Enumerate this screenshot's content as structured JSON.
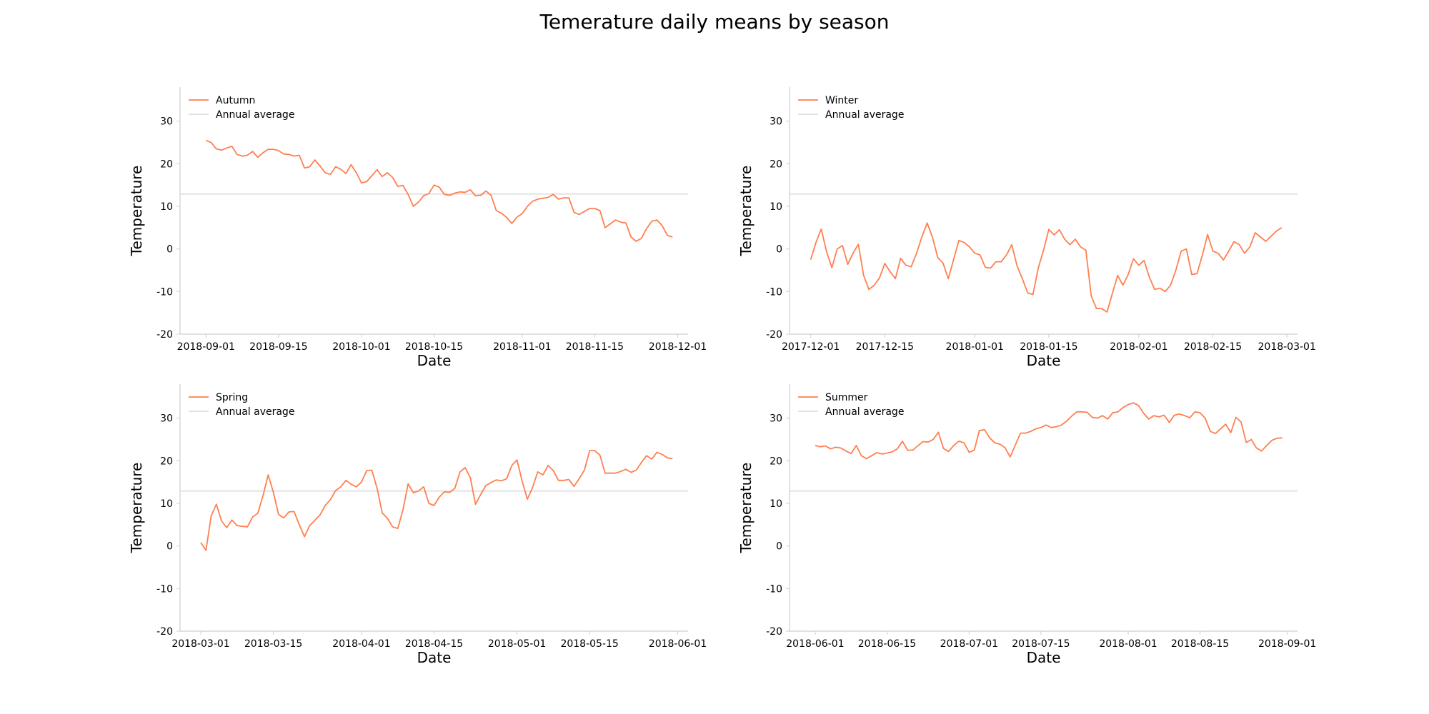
{
  "title": "Temerature daily means by season",
  "colors": {
    "series": "#FF7F50",
    "average": "#d9d9d9",
    "axis": "#cfcfcf"
  },
  "chart_data": [
    {
      "type": "line",
      "xlabel": "Date",
      "ylabel": "Temperature",
      "ylim": [
        -20,
        38
      ],
      "xlim": [
        "2018-08-27",
        "2018-12-03"
      ],
      "yticks": [
        -20,
        -10,
        0,
        10,
        20,
        30
      ],
      "xticks": [
        "2018-09-01",
        "2018-09-15",
        "2018-10-01",
        "2018-10-15",
        "2018-11-01",
        "2018-11-15",
        "2018-12-01"
      ],
      "legend": "top-left",
      "grid": false,
      "series": [
        {
          "name": "Autumn",
          "color": "#FF7F50",
          "x_start": "2018-09-01",
          "y": [
            25.5,
            25.0,
            23.5,
            23.2,
            23.7,
            24.1,
            22.2,
            21.8,
            22.0,
            22.9,
            21.5,
            22.6,
            23.4,
            23.4,
            23.1,
            22.3,
            22.2,
            21.8,
            22.0,
            19.0,
            19.3,
            20.9,
            19.5,
            17.9,
            17.5,
            19.3,
            18.7,
            17.7,
            19.8,
            17.9,
            15.5,
            15.8,
            17.2,
            18.6,
            17.0,
            17.9,
            16.8,
            14.7,
            14.9,
            12.8,
            10.0,
            11.0,
            12.5,
            13.0,
            15.0,
            14.5,
            12.8,
            12.6,
            13.1,
            13.4,
            13.3,
            13.9,
            12.5,
            12.6,
            13.6,
            12.6,
            9.0,
            8.4,
            7.4,
            6.0,
            7.5,
            8.3,
            10.0,
            11.2,
            11.7,
            11.9,
            12.1,
            12.8,
            11.7,
            12.0,
            12.0,
            8.6,
            8.1,
            8.8,
            9.5,
            9.5,
            9.0,
            5.0,
            5.9,
            6.8,
            6.3,
            6.1,
            2.8,
            1.8,
            2.5,
            4.8,
            6.5,
            6.8,
            5.5,
            3.2,
            2.8
          ]
        },
        {
          "name": "Annual average",
          "color": "#d9d9d9",
          "y": 12.9
        }
      ]
    },
    {
      "type": "line",
      "xlabel": "Date",
      "ylabel": "Temperature",
      "ylim": [
        -20,
        38
      ],
      "xlim": [
        "2017-11-27",
        "2018-03-03"
      ],
      "yticks": [
        -20,
        -10,
        0,
        10,
        20,
        30
      ],
      "xticks": [
        "2017-12-01",
        "2017-12-15",
        "2018-01-01",
        "2018-01-15",
        "2018-02-01",
        "2018-02-15",
        "2018-03-01"
      ],
      "legend": "top-left",
      "grid": false,
      "series": [
        {
          "name": "Winter",
          "color": "#FF7F50",
          "x_start": "2017-12-01",
          "y": [
            -2.5,
            1.5,
            4.7,
            -0.6,
            -4.4,
            0.0,
            0.8,
            -3.6,
            -1.0,
            1.1,
            -6.2,
            -9.5,
            -8.5,
            -6.8,
            -3.4,
            -5.3,
            -7.0,
            -2.2,
            -3.8,
            -4.2,
            -1.0,
            2.8,
            6.1,
            2.8,
            -2.0,
            -3.3,
            -7.0,
            -2.5,
            2.0,
            1.5,
            0.5,
            -1.0,
            -1.4,
            -4.3,
            -4.5,
            -3.0,
            -3.0,
            -1.4,
            1.0,
            -4.0,
            -7.0,
            -10.3,
            -10.7,
            -4.5,
            -0.3,
            4.6,
            3.3,
            4.5,
            2.3,
            1.0,
            2.3,
            0.5,
            -0.3,
            -11.0,
            -14.0,
            -14.0,
            -14.8,
            -10.5,
            -6.2,
            -8.5,
            -6.0,
            -2.3,
            -3.8,
            -2.7,
            -6.6,
            -9.5,
            -9.2,
            -10.0,
            -8.5,
            -5.0,
            -0.5,
            0.0,
            -6.0,
            -5.8,
            -1.5,
            3.4,
            -0.5,
            -1.0,
            -2.6,
            -0.5,
            1.7,
            1.0,
            -1.0,
            0.5,
            3.8,
            2.8,
            1.8,
            3.0,
            4.2,
            5.0
          ]
        },
        {
          "name": "Annual average",
          "color": "#d9d9d9",
          "y": 12.9
        }
      ]
    },
    {
      "type": "line",
      "xlabel": "Date",
      "ylabel": "Temperature",
      "ylim": [
        -20,
        38
      ],
      "xlim": [
        "2018-02-25",
        "2018-06-03"
      ],
      "yticks": [
        -20,
        -10,
        0,
        10,
        20,
        30
      ],
      "xticks": [
        "2018-03-01",
        "2018-03-15",
        "2018-04-01",
        "2018-04-15",
        "2018-05-01",
        "2018-05-15",
        "2018-06-01"
      ],
      "legend": "top-left",
      "grid": false,
      "series": [
        {
          "name": "Spring",
          "color": "#FF7F50",
          "x_start": "2018-03-01",
          "y": [
            0.8,
            -1.0,
            7.0,
            9.8,
            5.9,
            4.3,
            6.1,
            4.8,
            4.6,
            4.5,
            6.8,
            7.7,
            11.8,
            16.7,
            12.6,
            7.4,
            6.6,
            8.0,
            8.1,
            5.0,
            2.2,
            4.8,
            6.0,
            7.3,
            9.5,
            10.9,
            13.0,
            13.9,
            15.4,
            14.5,
            13.9,
            15.0,
            17.7,
            17.8,
            13.6,
            7.8,
            6.5,
            4.5,
            4.1,
            8.5,
            14.6,
            12.5,
            12.9,
            13.9,
            10.0,
            9.5,
            11.5,
            12.7,
            12.6,
            13.5,
            17.4,
            18.4,
            16.0,
            9.8,
            12.1,
            14.2,
            14.9,
            15.5,
            15.3,
            15.8,
            18.9,
            20.2,
            15.2,
            11.0,
            13.7,
            17.4,
            16.7,
            18.9,
            17.7,
            15.4,
            15.4,
            15.6,
            14.0,
            15.8,
            17.8,
            22.4,
            22.4,
            21.3,
            17.1,
            17.1,
            17.1,
            17.5,
            18.0,
            17.3,
            17.8,
            19.6,
            21.2,
            20.4,
            22.0,
            21.5,
            20.7,
            20.5
          ]
        },
        {
          "name": "Annual average",
          "color": "#d9d9d9",
          "y": 12.9
        }
      ]
    },
    {
      "type": "line",
      "xlabel": "Date",
      "ylabel": "Temperature",
      "ylim": [
        -20,
        38
      ],
      "xlim": [
        "2018-05-27",
        "2018-09-03"
      ],
      "yticks": [
        -20,
        -10,
        0,
        10,
        20,
        30
      ],
      "xticks": [
        "2018-06-01",
        "2018-06-15",
        "2018-07-01",
        "2018-07-15",
        "2018-08-01",
        "2018-08-15",
        "2018-09-01"
      ],
      "legend": "top-left",
      "grid": false,
      "series": [
        {
          "name": "Summer",
          "color": "#FF7F50",
          "x_start": "2018-06-01",
          "y": [
            23.6,
            23.3,
            23.5,
            22.8,
            23.2,
            23.0,
            22.3,
            21.7,
            23.6,
            21.2,
            20.5,
            21.2,
            21.9,
            21.6,
            21.8,
            22.1,
            22.8,
            24.6,
            22.5,
            22.5,
            23.5,
            24.5,
            24.4,
            25.0,
            26.7,
            22.9,
            22.2,
            23.6,
            24.6,
            24.2,
            22.0,
            22.5,
            27.1,
            27.3,
            25.4,
            24.2,
            23.9,
            23.1,
            20.9,
            23.7,
            26.5,
            26.5,
            26.9,
            27.5,
            27.8,
            28.4,
            27.8,
            28.0,
            28.4,
            29.3,
            30.5,
            31.5,
            31.5,
            31.4,
            30.2,
            30.0,
            30.6,
            29.8,
            31.3,
            31.5,
            32.5,
            33.2,
            33.6,
            33.0,
            31.2,
            29.8,
            30.6,
            30.3,
            30.7,
            29.0,
            30.7,
            31.0,
            30.6,
            30.1,
            31.5,
            31.3,
            30.0,
            26.9,
            26.4,
            27.5,
            28.6,
            26.6,
            30.2,
            29.1,
            24.3,
            25.0,
            23.0,
            22.3,
            23.6,
            24.8,
            25.3,
            25.4
          ]
        },
        {
          "name": "Annual average",
          "color": "#d9d9d9",
          "y": 12.9
        }
      ]
    }
  ]
}
